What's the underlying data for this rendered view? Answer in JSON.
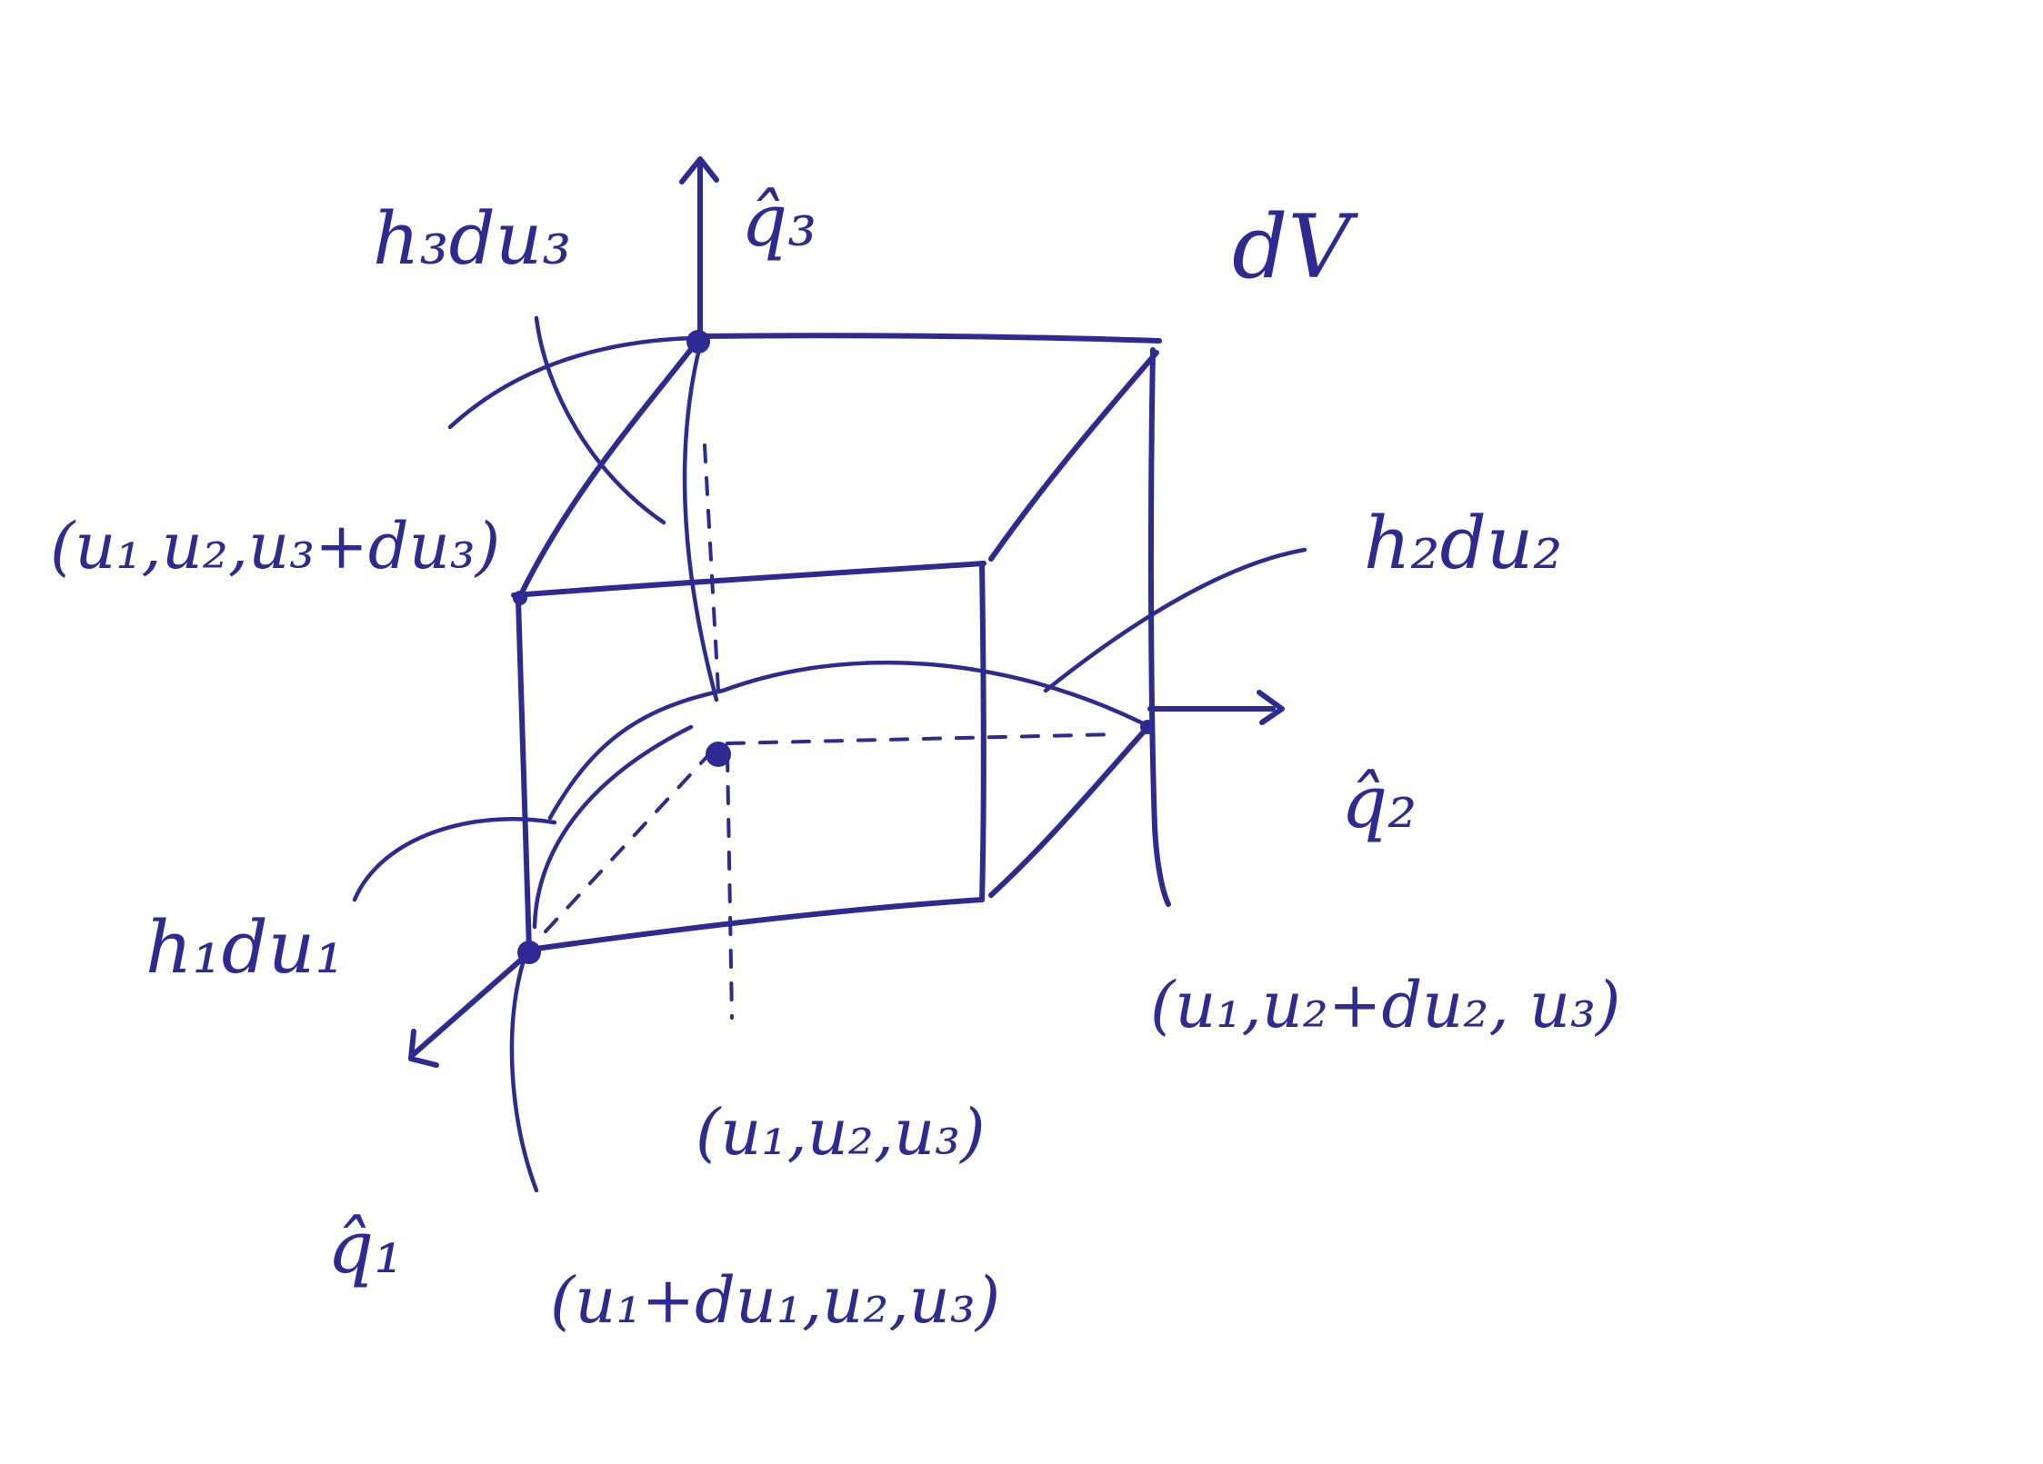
{
  "diagram": {
    "labels": {
      "volume": "dV",
      "edge_1": "h₁du₁",
      "edge_2": "h₂du₂",
      "edge_3": "h₃du₃",
      "unit_vector_1": "q̂₁",
      "unit_vector_2": "q̂₂",
      "unit_vector_3": "q̂₃",
      "point_origin": "(u₁,u₂,u₃)",
      "point_du1": "(u₁+du₁,u₂,u₃)",
      "point_du2": "(u₁,u₂+du₂, u₃)",
      "point_du3": "(u₁,u₂,u₃+du₃)"
    },
    "ink_color": "#2e2a93"
  }
}
